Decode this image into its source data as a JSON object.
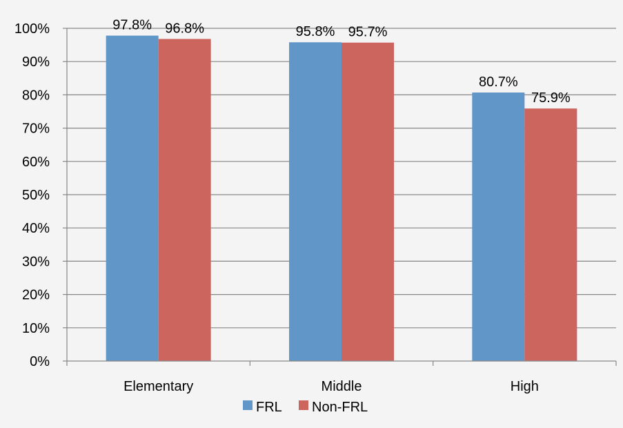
{
  "chart_data": {
    "type": "bar",
    "categories": [
      "Elementary",
      "Middle",
      "High"
    ],
    "series": [
      {
        "name": "FRL",
        "values": [
          97.8,
          95.8,
          80.7
        ],
        "labels": [
          "97.8%",
          "95.8%",
          "80.7%"
        ],
        "color": "#6196c9"
      },
      {
        "name": "Non-FRL",
        "values": [
          96.8,
          95.7,
          75.9
        ],
        "labels": [
          "96.8%",
          "95.7%",
          "75.9%"
        ],
        "color": "#cd655f"
      }
    ],
    "ylim": [
      0,
      100
    ],
    "yticks": [
      "0%",
      "10%",
      "20%",
      "30%",
      "40%",
      "50%",
      "60%",
      "70%",
      "80%",
      "90%",
      "100%"
    ],
    "grid": true,
    "legend": "bottom",
    "title": "",
    "xlabel": "",
    "ylabel": ""
  }
}
